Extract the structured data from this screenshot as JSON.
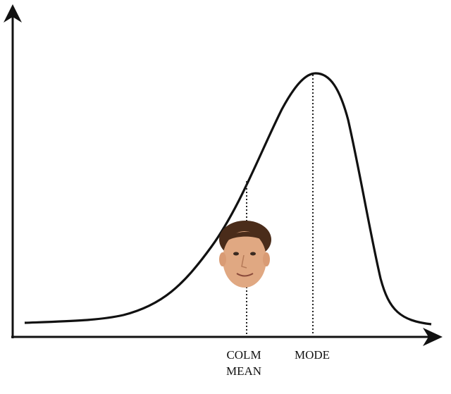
{
  "mean_label": [
    "COLM",
    "MEAN"
  ],
  "mode_label": "MODE"
}
